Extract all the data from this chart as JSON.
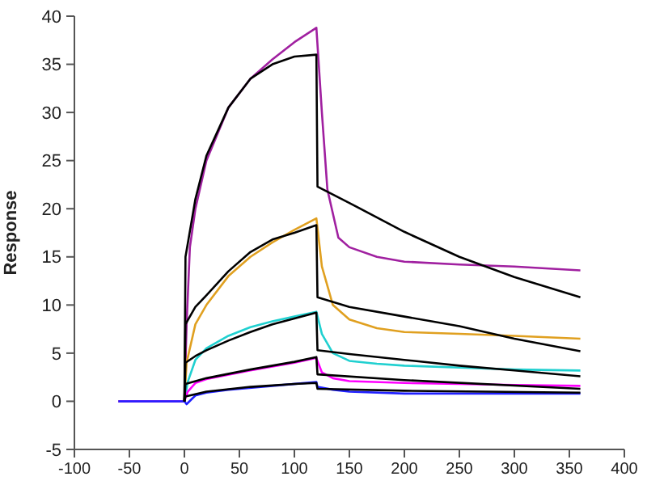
{
  "chart_data": {
    "type": "line",
    "ylabel": "Response",
    "xlim": [
      -100,
      400
    ],
    "xticks": [
      -100,
      -50,
      0,
      50,
      100,
      150,
      200,
      250,
      300,
      350,
      400
    ],
    "ylim": [
      -5,
      40
    ],
    "yticks": [
      -5,
      0,
      5,
      10,
      15,
      20,
      25,
      30,
      35,
      40
    ],
    "grid": false,
    "marker": "none",
    "line_style": "solid",
    "series": [
      {
        "color": "#a020a0",
        "x": [
          -60,
          0,
          2,
          5,
          10,
          20,
          40,
          60,
          80,
          100,
          120,
          125,
          130,
          140,
          150,
          175,
          200,
          250,
          300,
          360
        ],
        "values": [
          0,
          0,
          8,
          16,
          20,
          25,
          30.5,
          33.5,
          35.5,
          37.3,
          38.8,
          30,
          22,
          17,
          16,
          15,
          14.5,
          14.2,
          14,
          13.6
        ]
      },
      {
        "color": "#e0a020",
        "x": [
          -60,
          0,
          2,
          10,
          20,
          40,
          60,
          80,
          100,
          120,
          125,
          135,
          150,
          175,
          200,
          250,
          300,
          360
        ],
        "values": [
          0,
          0,
          4,
          8,
          10,
          13,
          15,
          16.5,
          17.8,
          19,
          14,
          10,
          8.5,
          7.6,
          7.2,
          7,
          6.8,
          6.5
        ]
      },
      {
        "color": "#20d0d0",
        "x": [
          -60,
          0,
          3,
          10,
          20,
          40,
          60,
          80,
          100,
          120,
          125,
          135,
          150,
          175,
          200,
          250,
          300,
          360
        ],
        "values": [
          0,
          0,
          2,
          4.3,
          5.5,
          6.8,
          7.7,
          8.3,
          8.8,
          9.3,
          7,
          5,
          4.2,
          3.9,
          3.7,
          3.5,
          3.3,
          3.2
        ]
      },
      {
        "color": "#ff00ff",
        "x": [
          -60,
          0,
          3,
          10,
          20,
          60,
          100,
          120,
          125,
          135,
          150,
          200,
          250,
          300,
          360
        ],
        "values": [
          0,
          0,
          1,
          1.9,
          2.3,
          3.2,
          4,
          4.5,
          3,
          2.4,
          2.1,
          1.9,
          1.8,
          1.7,
          1.6
        ]
      },
      {
        "color": "#2020ff",
        "x": [
          -60,
          0,
          2,
          10,
          20,
          40,
          80,
          120,
          121,
          135,
          150,
          200,
          250,
          300,
          360
        ],
        "values": [
          0,
          0,
          -0.3,
          0.6,
          0.9,
          1.2,
          1.6,
          2,
          1.5,
          1.2,
          1,
          0.8,
          0.8,
          0.8,
          0.8
        ]
      },
      {
        "color": "#000000",
        "x": [
          0,
          1,
          10,
          20,
          40,
          60,
          80,
          100,
          120,
          121,
          150,
          200,
          250,
          300,
          360
        ],
        "values": [
          0,
          15,
          21,
          25.5,
          30.5,
          33.5,
          35,
          35.8,
          36,
          22.3,
          20.6,
          17.6,
          15,
          12.9,
          10.8
        ]
      },
      {
        "color": "#000000",
        "x": [
          0,
          1,
          10,
          20,
          40,
          60,
          80,
          100,
          120,
          121,
          150,
          200,
          250,
          300,
          360
        ],
        "values": [
          0,
          8,
          9.8,
          11,
          13.5,
          15.5,
          16.8,
          17.5,
          18.3,
          10.8,
          9.8,
          8.8,
          7.8,
          6.5,
          5.2
        ]
      },
      {
        "color": "#000000",
        "x": [
          0,
          1,
          10,
          20,
          40,
          60,
          80,
          100,
          120,
          121,
          150,
          200,
          250,
          300,
          360
        ],
        "values": [
          0,
          4,
          4.7,
          5.3,
          6.3,
          7.2,
          8,
          8.6,
          9.2,
          5.3,
          4.9,
          4.3,
          3.7,
          3.2,
          2.6
        ]
      },
      {
        "color": "#000000",
        "x": [
          0,
          1,
          20,
          60,
          100,
          120,
          121,
          200,
          360
        ],
        "values": [
          0,
          1.8,
          2.4,
          3.3,
          4.1,
          4.6,
          2.8,
          2.2,
          1.3
        ]
      },
      {
        "color": "#000000",
        "x": [
          0,
          1,
          20,
          60,
          100,
          120,
          121,
          200,
          360
        ],
        "values": [
          0,
          0.5,
          1,
          1.5,
          1.8,
          1.9,
          1.3,
          1.1,
          0.9
        ]
      }
    ]
  }
}
